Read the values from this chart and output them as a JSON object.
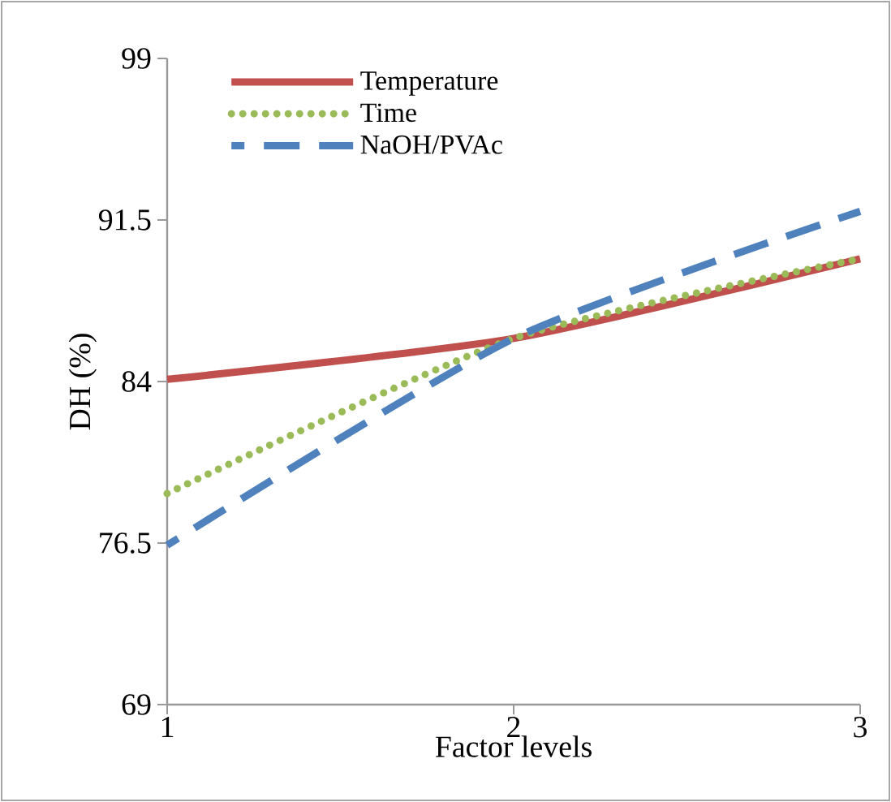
{
  "chart_data": {
    "type": "line",
    "xlabel": "Factor levels",
    "ylabel": "DH (%)",
    "x": [
      1,
      2,
      3
    ],
    "series": [
      {
        "name": "Temperature",
        "color": "#c0504d",
        "line_style": "solid",
        "values": [
          84.1,
          86.0,
          89.7
        ]
      },
      {
        "name": "Time",
        "color": "#9bbb59",
        "line_style": "dotted",
        "values": [
          78.8,
          86.0,
          89.7
        ]
      },
      {
        "name": "NaOH/PVAc",
        "color": "#4f81bd",
        "line_style": "dashed",
        "values": [
          76.4,
          86.0,
          91.9
        ]
      }
    ],
    "xlim": [
      1,
      3
    ],
    "xticks": [
      1,
      2,
      3
    ],
    "ylim": [
      69,
      99
    ],
    "yticks": [
      69,
      76.5,
      84,
      91.5,
      99
    ],
    "grid": false,
    "legend": "top left",
    "marker": "none"
  }
}
